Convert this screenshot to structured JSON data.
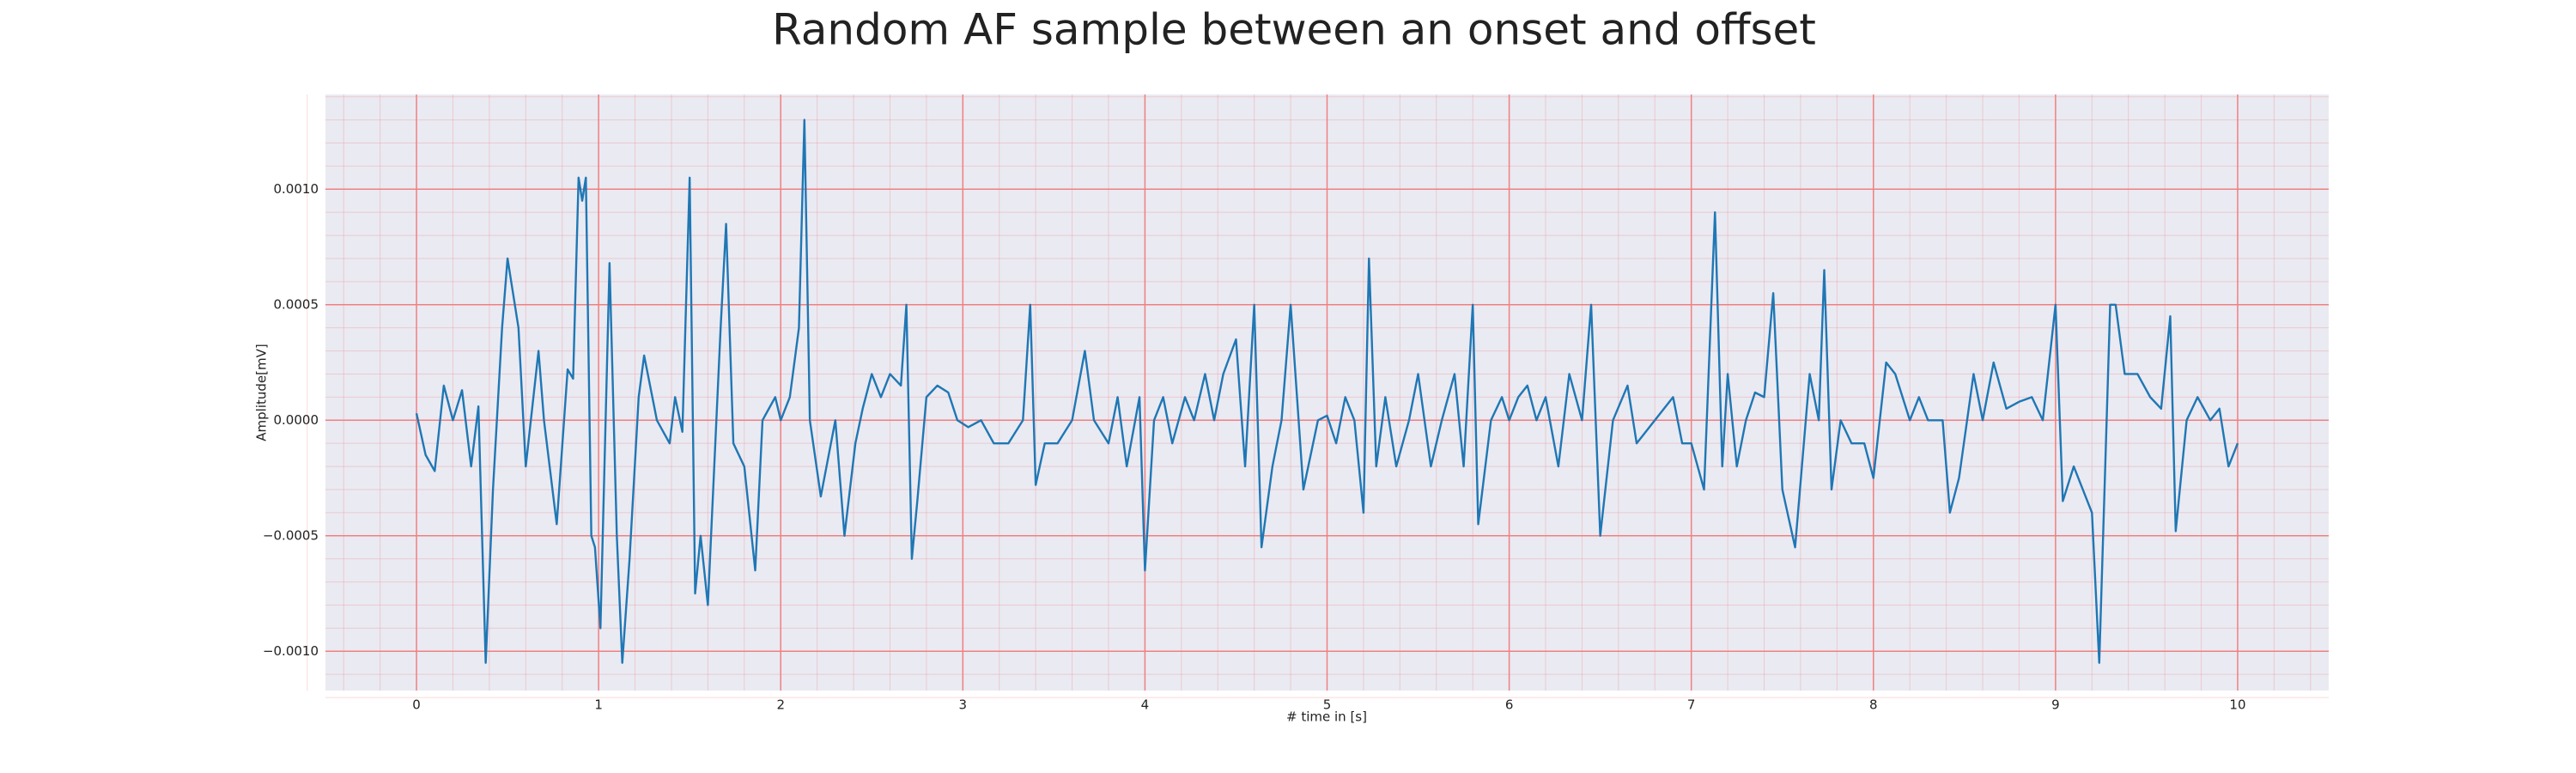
{
  "chart_data": {
    "type": "line",
    "title": "Random AF sample between an onset and offset",
    "xlabel": "# time in [s]",
    "ylabel": "Amplitude[mV]",
    "color": "#1f77b4",
    "grid": true,
    "grid_color": "#f08080",
    "minor_grid": true,
    "background": "#eaeaf2",
    "xlim": [
      -0.5,
      10.5
    ],
    "ylim": [
      -0.00117,
      0.00141
    ],
    "xticks": [
      0,
      1,
      2,
      3,
      4,
      5,
      6,
      7,
      8,
      9,
      10
    ],
    "yticks": [
      {
        "value": -0.001,
        "label": "−0.0010"
      },
      {
        "value": -0.0005,
        "label": "−0.0005"
      },
      {
        "value": 0,
        "label": "0.0000"
      },
      {
        "value": 0.0005,
        "label": "0.0005"
      },
      {
        "value": 0.001,
        "label": "0.0010"
      }
    ],
    "x": [
      0,
      0.05,
      0.1,
      0.15,
      0.2,
      0.25,
      0.3,
      0.34,
      0.38,
      0.42,
      0.47,
      0.5,
      0.53,
      0.56,
      0.6,
      0.67,
      0.7,
      0.77,
      0.83,
      0.86,
      0.89,
      0.91,
      0.93,
      0.96,
      0.98,
      1.01,
      1.06,
      1.1,
      1.13,
      1.17,
      1.22,
      1.25,
      1.32,
      1.39,
      1.42,
      1.46,
      1.5,
      1.53,
      1.56,
      1.6,
      1.67,
      1.7,
      1.74,
      1.8,
      1.86,
      1.9,
      1.97,
      2.0,
      2.05,
      2.1,
      2.13,
      2.16,
      2.22,
      2.3,
      2.35,
      2.41,
      2.45,
      2.5,
      2.55,
      2.6,
      2.66,
      2.69,
      2.72,
      2.75,
      2.8,
      2.86,
      2.92,
      2.97,
      3.03,
      3.1,
      3.17,
      3.25,
      3.33,
      3.37,
      3.4,
      3.45,
      3.52,
      3.6,
      3.67,
      3.72,
      3.8,
      3.85,
      3.9,
      3.97,
      4.0,
      4.05,
      4.1,
      4.15,
      4.22,
      4.27,
      4.33,
      4.38,
      4.43,
      4.5,
      4.55,
      4.6,
      4.64,
      4.7,
      4.75,
      4.8,
      4.87,
      4.95,
      5.0,
      5.05,
      5.1,
      5.15,
      5.2,
      5.23,
      5.27,
      5.32,
      5.38,
      5.45,
      5.5,
      5.57,
      5.63,
      5.7,
      5.75,
      5.8,
      5.83,
      5.9,
      5.96,
      6.0,
      6.05,
      6.1,
      6.15,
      6.2,
      6.27,
      6.33,
      6.4,
      6.45,
      6.5,
      6.57,
      6.65,
      6.7,
      6.8,
      6.9,
      6.95,
      7.0,
      7.07,
      7.13,
      7.17,
      7.2,
      7.25,
      7.3,
      7.35,
      7.4,
      7.45,
      7.5,
      7.57,
      7.65,
      7.7,
      7.73,
      7.77,
      7.82,
      7.88,
      7.95,
      8.0,
      8.07,
      8.12,
      8.2,
      8.25,
      8.3,
      8.38,
      8.42,
      8.47,
      8.55,
      8.6,
      8.66,
      8.73,
      8.8,
      8.87,
      8.93,
      9.0,
      9.04,
      9.1,
      9.2,
      9.24,
      9.3,
      9.33,
      9.38,
      9.45,
      9.52,
      9.58,
      9.63,
      9.66,
      9.72,
      9.78,
      9.85,
      9.9,
      9.95,
      10.0
    ],
    "values": [
      3e-05,
      -0.00015,
      -0.00022,
      0.00015,
      0.0,
      0.00013,
      -0.0002,
      6e-05,
      -0.00105,
      -0.0003,
      0.0004,
      0.0007,
      0.00055,
      0.0004,
      -0.0002,
      0.0003,
      0.0,
      -0.00045,
      0.00022,
      0.00018,
      0.00105,
      0.00095,
      0.00105,
      -0.0005,
      -0.00055,
      -0.0009,
      0.00068,
      -0.0005,
      -0.00105,
      -0.0006,
      0.0001,
      0.00028,
      0.0,
      -0.0001,
      0.0001,
      -5e-05,
      0.00105,
      -0.00075,
      -0.0005,
      -0.0008,
      0.0004,
      0.00085,
      -0.0001,
      -0.0002,
      -0.00065,
      0.0,
      0.0001,
      0.0,
      0.0001,
      0.0004,
      0.0013,
      0.0,
      -0.00033,
      0.0,
      -0.0005,
      -0.0001,
      5e-05,
      0.0002,
      0.0001,
      0.0002,
      0.00015,
      0.0005,
      -0.0006,
      -0.00035,
      0.0001,
      0.00015,
      0.00012,
      0.0,
      -3e-05,
      0.0,
      -0.0001,
      -0.0001,
      0.0,
      0.0005,
      -0.00028,
      -0.0001,
      -0.0001,
      0.0,
      0.0003,
      0.0,
      -0.0001,
      0.0001,
      -0.0002,
      0.0001,
      -0.00065,
      0.0,
      0.0001,
      -0.0001,
      0.0001,
      0.0,
      0.0002,
      0.0,
      0.0002,
      0.00035,
      -0.0002,
      0.0005,
      -0.00055,
      -0.0002,
      0.0,
      0.0005,
      -0.0003,
      0.0,
      2e-05,
      -0.0001,
      0.0001,
      0.0,
      -0.0004,
      0.0007,
      -0.0002,
      0.0001,
      -0.0002,
      0.0,
      0.0002,
      -0.0002,
      0.0,
      0.0002,
      -0.0002,
      0.0005,
      -0.00045,
      0.0,
      0.0001,
      0.0,
      0.0001,
      0.00015,
      0.0,
      0.0001,
      -0.0002,
      0.0002,
      0.0,
      0.0005,
      -0.0005,
      0.0,
      0.00015,
      -0.0001,
      0.0,
      0.0001,
      -0.0001,
      -0.0001,
      -0.0003,
      0.0009,
      -0.0002,
      0.0002,
      -0.0002,
      0.0,
      0.00012,
      0.0001,
      0.00055,
      -0.0003,
      -0.00055,
      0.0002,
      0.0,
      0.00065,
      -0.0003,
      0.0,
      -0.0001,
      -0.0001,
      -0.00025,
      0.00025,
      0.0002,
      0.0,
      0.0001,
      0.0,
      0.0,
      -0.0004,
      -0.00025,
      0.0002,
      0.0,
      0.00025,
      5e-05,
      8e-05,
      0.0001,
      0.0,
      0.0005,
      -0.00035,
      -0.0002,
      -0.0004,
      -0.00105,
      0.0005,
      0.0005,
      0.0002,
      0.0002,
      0.0001,
      5e-05,
      0.00045,
      -0.00048,
      0.0,
      0.0001,
      0.0,
      5e-05,
      -0.0002,
      -0.0001
    ]
  }
}
